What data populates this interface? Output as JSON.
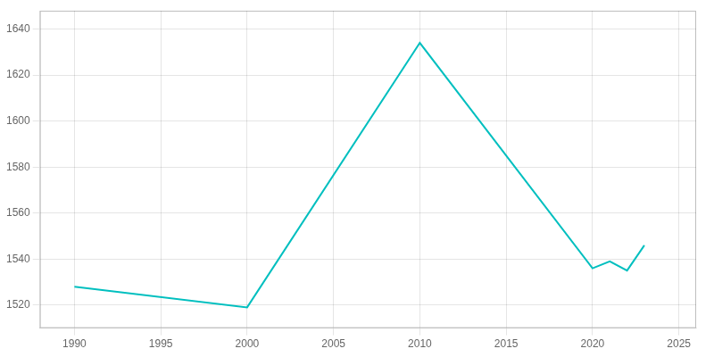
{
  "chart_data": {
    "type": "line",
    "x": [
      1990,
      2000,
      2010,
      2020,
      2021,
      2022,
      2023
    ],
    "values": [
      1528,
      1519,
      1634,
      1536,
      1539,
      1535,
      1546
    ],
    "color": "#00BFBF",
    "xlim": [
      1988,
      2026
    ],
    "ylim": [
      1510,
      1648
    ],
    "xticks": [
      1990,
      1995,
      2000,
      2005,
      2010,
      2015,
      2020,
      2025
    ],
    "yticks": [
      1520,
      1540,
      1560,
      1580,
      1600,
      1620,
      1640
    ],
    "grid": true
  }
}
